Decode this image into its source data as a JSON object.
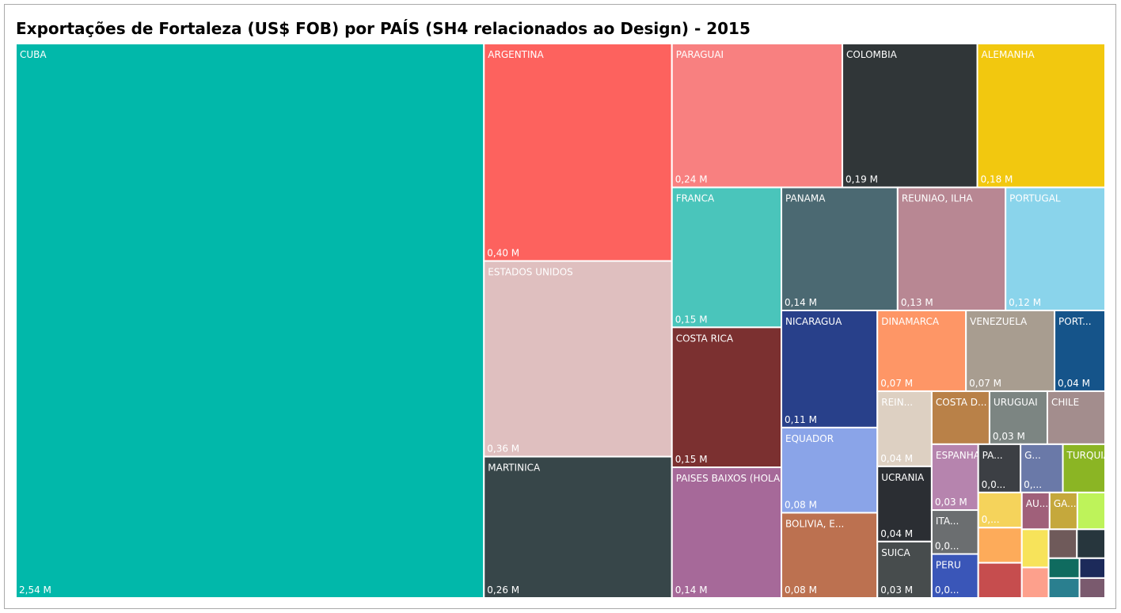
{
  "chart_data": {
    "type": "treemap",
    "title": "Exportações de Fortaleza (US$ FOB) por PAÍS (SH4 relacionados ao Design) - 2015",
    "categories": [
      "CUBA",
      "ARGENTINA",
      "ESTADOS UNIDOS",
      "MARTINICA",
      "PARAGUAI",
      "COLOMBIA",
      "ALEMANHA",
      "FRANCA",
      "COSTA RICA",
      "PAISES BAIXOS (HOLANDA)",
      "PANAMA",
      "REUNIAO, ILHA",
      "PORTUGAL",
      "NICARAGUA",
      "EQUADOR",
      "BOLIVIA, E...",
      "DINAMARCA",
      "VENEZUELA",
      "PORT...",
      "REIN...",
      "UCRANIA",
      "SUICA",
      "COSTA D...",
      "URUGUAI",
      "CHILE",
      "ESPANHA",
      "ITA...",
      "PERU",
      "PA...",
      "G...",
      "TURQUIA",
      null,
      null,
      null,
      "AU...",
      "GA...",
      null,
      null,
      null,
      null,
      null,
      null,
      null,
      null,
      null
    ],
    "values": [
      2.54,
      0.4,
      0.36,
      0.26,
      0.24,
      0.19,
      0.18,
      0.15,
      0.15,
      0.14,
      0.14,
      0.13,
      0.12,
      0.11,
      0.08,
      0.08,
      0.07,
      0.07,
      0.04,
      0.04,
      0.04,
      0.03,
      0.03,
      0.03,
      0.03,
      0.03,
      0.02,
      0.02,
      0.02,
      0.02,
      0.02,
      0.015,
      0.015,
      0.015,
      0.01,
      0.01,
      0.01,
      0.01,
      0.008,
      0.008,
      0.008,
      0.006,
      0.006,
      0.005,
      0.005
    ],
    "value_labels": [
      "2,54 M",
      "0,40 M",
      "0,36 M",
      "0,26 M",
      "0,24 M",
      "0,19 M",
      "0,18 M",
      "0,15 M",
      "0,15 M",
      "0,14 M",
      "0,14 M",
      "0,13 M",
      "0,12 M",
      "0,11 M",
      "0,08 M",
      "0,08 M",
      "0,07 M",
      "0,07 M",
      "0,04 M",
      "0,04 M",
      "0,04 M",
      "0,03 M",
      null,
      "0,03 M",
      null,
      "0,03 M",
      "0,0...",
      "0,0...",
      "0,0...",
      "0,...",
      null,
      "0,...",
      null,
      null,
      null,
      null,
      null,
      null,
      null,
      null,
      null,
      null,
      null,
      null,
      null
    ],
    "colors": [
      "#01b8aa",
      "#fd625e",
      "#dfbfbf",
      "#374649",
      "#f88080",
      "#303638",
      "#f2c80f",
      "#4ac5bb",
      "#7b3030",
      "#a66999",
      "#4b6972",
      "#b88793",
      "#8ad4eb",
      "#28408a",
      "#8aa4e8",
      "#bc7150",
      "#fe9666",
      "#a89d90",
      "#15548a",
      "#ddd0c2",
      "#2b2e33",
      "#474c4d",
      "#b98148",
      "#7c8582",
      "#a38d8d",
      "#b684ae",
      "#6b6e70",
      "#3a56b8",
      "#3c3f44",
      "#6a79a8",
      "#8bb524",
      "#f5d35b",
      "#fdab5a",
      "#c64d4e",
      "#a0607a",
      "#c5a83c",
      "#bef35a",
      "#f7e35a",
      "#fda08c",
      "#6f5a5a",
      "#27363d",
      "#0f6b5f",
      "#2a7f8f",
      "#1c2a5a",
      "#7a5a6e"
    ]
  }
}
